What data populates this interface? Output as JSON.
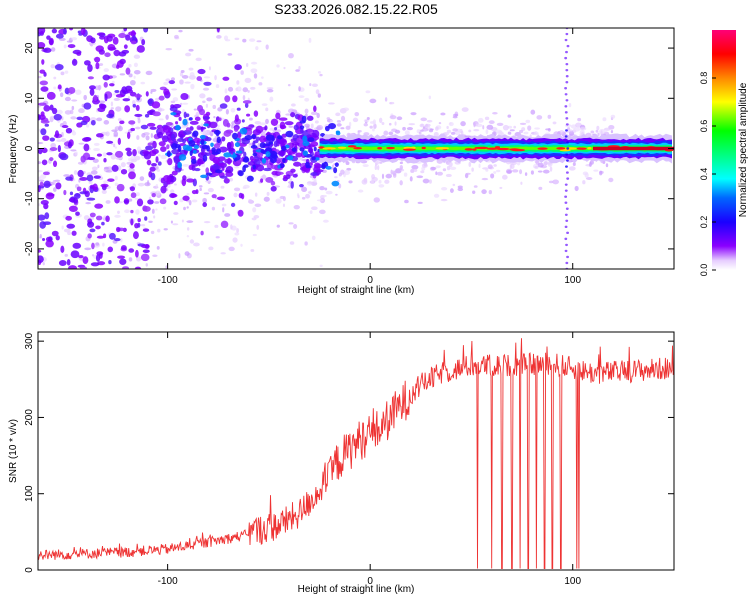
{
  "figure_title": "S233.2026.082.15.22.R05",
  "chart_data": [
    {
      "type": "heatmap",
      "title": "S233.2026.082.15.22.R05",
      "xlabel": "Height of straight line (km)",
      "ylabel": "Frequency (Hz)",
      "xlim": [
        -164,
        150
      ],
      "ylim": [
        -24,
        24
      ],
      "xticks": [
        -100,
        0,
        100
      ],
      "yticks": [
        -20,
        -10,
        0,
        10,
        20
      ],
      "colorbar": {
        "label": "Normalized spectral amplitude",
        "range": [
          0.0,
          1.0
        ],
        "ticks": [
          0.0,
          0.2,
          0.4,
          0.6,
          0.8
        ],
        "tick_labels": [
          "0.0",
          "0.2",
          "0.4",
          "0.6",
          "0.8"
        ],
        "colormap": [
          "#ffffff",
          "#7b00ff",
          "#0000ff",
          "#00aaff",
          "#00ffff",
          "#00ff00",
          "#ffff00",
          "#ff8800",
          "#ff0000",
          "#ff0066"
        ]
      },
      "description_features": {
        "scatter_region_x": [
          -164,
          -25
        ],
        "central_band_x": [
          -25,
          150
        ],
        "central_band_freq": 0,
        "vertical_stripe_x": 97
      }
    },
    {
      "type": "line",
      "title": "",
      "xlabel": "Height of straight line (km)",
      "ylabel": "SNR (10 * v/v)",
      "xlim": [
        -164,
        150
      ],
      "ylim": [
        0,
        312
      ],
      "xticks": [
        -100,
        0,
        100
      ],
      "yticks": [
        0,
        100,
        200,
        300
      ],
      "color": "#ee3333",
      "series": [
        {
          "name": "SNR",
          "x": [
            -164,
            -140,
            -120,
            -100,
            -80,
            -60,
            -45,
            -35,
            -25,
            -15,
            -5,
            5,
            15,
            25,
            35,
            50,
            70,
            90,
            110,
            130,
            150
          ],
          "values": [
            18,
            20,
            22,
            26,
            35,
            45,
            55,
            70,
            100,
            140,
            165,
            180,
            210,
            240,
            255,
            265,
            265,
            268,
            255,
            258,
            262
          ]
        }
      ],
      "dropouts_x": [
        53,
        60,
        65,
        70,
        74,
        78,
        82,
        86,
        90,
        94,
        102,
        103
      ]
    }
  ]
}
